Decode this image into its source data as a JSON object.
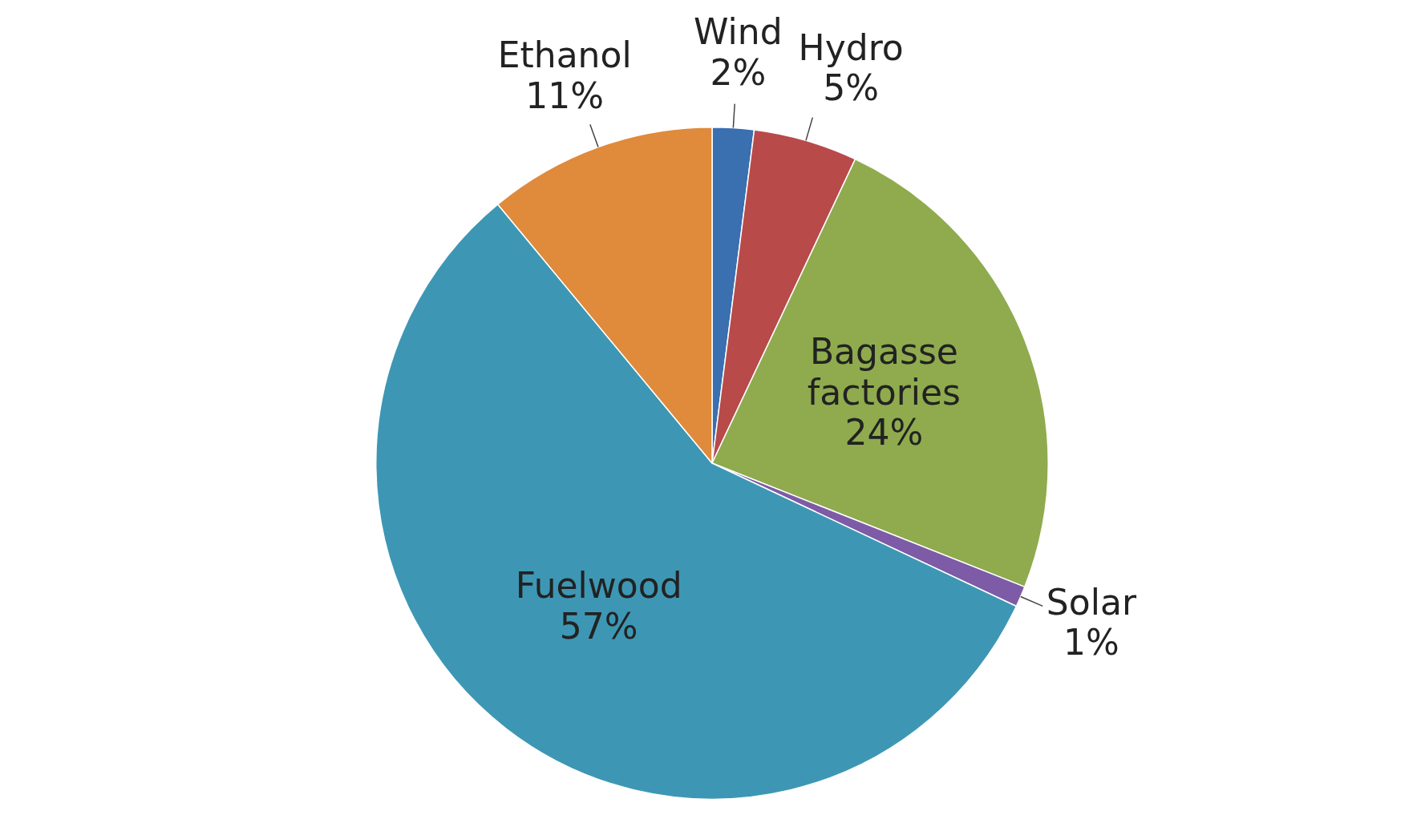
{
  "chart_data": {
    "type": "pie",
    "categories": [
      "Wind",
      "Hydro",
      "Bagasse factories",
      "Solar",
      "Fuelwood",
      "Ethanol"
    ],
    "values": [
      2,
      5,
      24,
      1,
      57,
      11
    ],
    "value_labels": [
      "2%",
      "5%",
      "24%",
      "1%",
      "57%",
      "11%"
    ],
    "colors": [
      "#3a6fb0",
      "#b84a4a",
      "#8fab4e",
      "#7d5ba6",
      "#3d97b4",
      "#e08a3c"
    ],
    "legend": false
  }
}
